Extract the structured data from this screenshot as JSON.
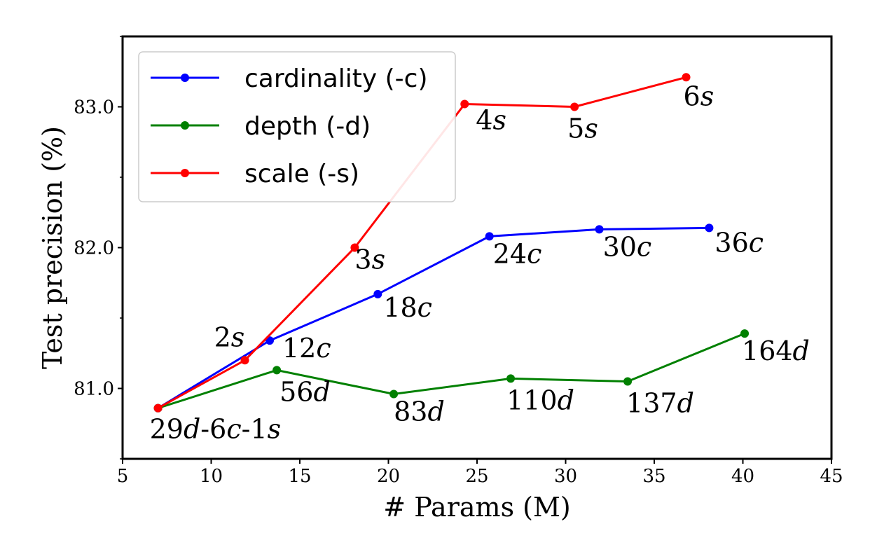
{
  "chart_data": {
    "type": "line",
    "title": "",
    "xlabel": "# Params (M)",
    "ylabel": "Test precision (%)",
    "xlim": [
      5,
      45
    ],
    "ylim": [
      80.5,
      83.5
    ],
    "xticks": [
      5,
      10,
      15,
      20,
      25,
      30,
      35,
      40,
      45
    ],
    "xtick_labels": [
      "5",
      "10",
      "15",
      "20",
      "25",
      "30",
      "35",
      "40",
      "45"
    ],
    "yticks": [
      81.0,
      82.0,
      83.0
    ],
    "ytick_labels": [
      "81.0",
      "82.0",
      "83.0"
    ],
    "grid": false,
    "legend_position": "top-left",
    "series": [
      {
        "name": "cardinality (-c)",
        "color": "#0000ff",
        "points": [
          {
            "x": 7.0,
            "y": 80.86,
            "label": ""
          },
          {
            "x": 13.3,
            "y": 81.34,
            "label": "12",
            "suffix": "c"
          },
          {
            "x": 19.4,
            "y": 81.67,
            "label": "18",
            "suffix": "c"
          },
          {
            "x": 25.7,
            "y": 82.08,
            "label": "24",
            "suffix": "c"
          },
          {
            "x": 31.9,
            "y": 82.13,
            "label": "30",
            "suffix": "c"
          },
          {
            "x": 38.1,
            "y": 82.14,
            "label": "36",
            "suffix": "c"
          }
        ]
      },
      {
        "name": "depth (-d)",
        "color": "#008000",
        "points": [
          {
            "x": 7.0,
            "y": 80.86,
            "label": ""
          },
          {
            "x": 13.7,
            "y": 81.13,
            "label": "56",
            "suffix": "d"
          },
          {
            "x": 20.3,
            "y": 80.96,
            "label": "83",
            "suffix": "d"
          },
          {
            "x": 26.9,
            "y": 81.07,
            "label": "110",
            "suffix": "d"
          },
          {
            "x": 33.5,
            "y": 81.05,
            "label": "137",
            "suffix": "d"
          },
          {
            "x": 40.1,
            "y": 81.39,
            "label": "164",
            "suffix": "d"
          }
        ]
      },
      {
        "name": "scale (-s)",
        "color": "#ff0000",
        "points": [
          {
            "x": 7.0,
            "y": 80.86,
            "label": ""
          },
          {
            "x": 11.9,
            "y": 81.2,
            "label": "2",
            "suffix": "s"
          },
          {
            "x": 18.1,
            "y": 82.0,
            "label": "3",
            "suffix": "s"
          },
          {
            "x": 24.3,
            "y": 83.02,
            "label": "4",
            "suffix": "s"
          },
          {
            "x": 30.5,
            "y": 83.0,
            "label": "5",
            "suffix": "s"
          },
          {
            "x": 36.8,
            "y": 83.21,
            "label": "6",
            "suffix": "s"
          }
        ]
      }
    ],
    "annotations": [
      {
        "x": 7.0,
        "y": 80.86,
        "parts": [
          {
            "t": "29",
            "it": false
          },
          {
            "t": "d",
            "it": true
          },
          {
            "t": "-6",
            "it": false
          },
          {
            "t": "c",
            "it": true
          },
          {
            "t": "-1",
            "it": false
          },
          {
            "t": "s",
            "it": true
          }
        ]
      }
    ]
  }
}
